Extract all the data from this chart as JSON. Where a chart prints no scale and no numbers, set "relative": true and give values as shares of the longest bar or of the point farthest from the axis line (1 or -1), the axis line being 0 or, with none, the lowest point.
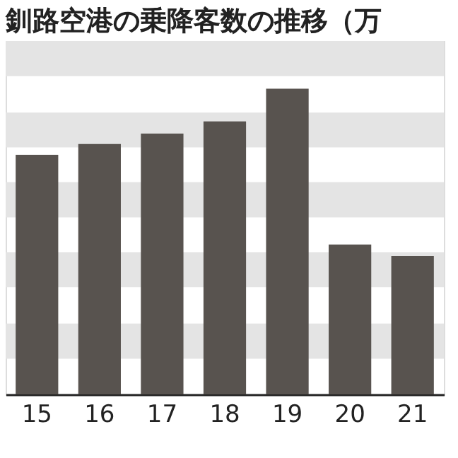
{
  "chart_data": {
    "type": "bar",
    "title": "釧路空港の乗降客数の推移（万",
    "categories": [
      "15",
      "16",
      "17",
      "18",
      "19",
      "20",
      "21"
    ],
    "values": [
      0.784,
      0.819,
      0.853,
      0.893,
      1,
      0.49,
      0.453
    ],
    "color": "#58534f",
    "relative": true,
    "bands": [
      {
        "axis": "y",
        "from": 0.117,
        "to": 0.232,
        "color": "#e4e4e4"
      },
      {
        "axis": "y",
        "from": 0.351,
        "to": 0.465,
        "color": "#e4e4e4"
      },
      {
        "axis": "y",
        "from": 0.579,
        "to": 0.694,
        "color": "#e4e4e4"
      },
      {
        "axis": "y",
        "from": 0.808,
        "to": 0.922,
        "color": "#e4e4e4"
      },
      {
        "axis": "y",
        "from": 1.041,
        "to": 1.156,
        "color": "#e4e4e4"
      }
    ]
  }
}
